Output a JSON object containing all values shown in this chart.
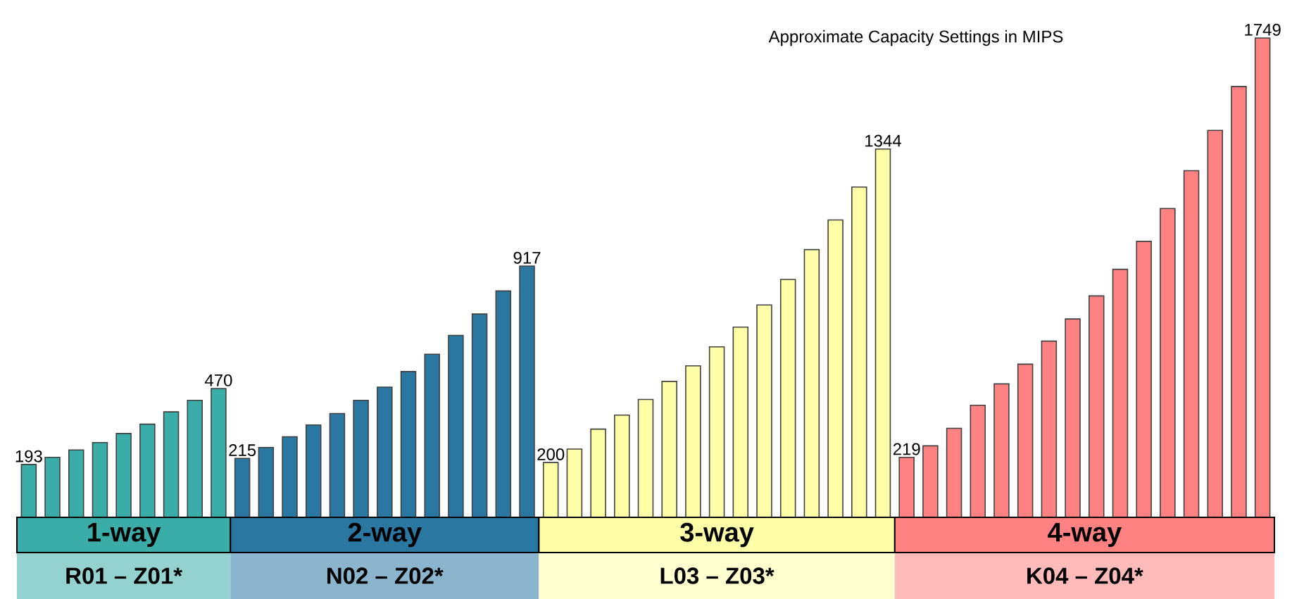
{
  "chart_data": {
    "type": "bar",
    "title": "Approximate Capacity Settings in MIPS",
    "categories": [
      null,
      null,
      null,
      null,
      null,
      null,
      null,
      null,
      null,
      null,
      null,
      null,
      null,
      null,
      null,
      null,
      null,
      null,
      null,
      null,
      null,
      null,
      null,
      null,
      null,
      null,
      null,
      null,
      null,
      null,
      null,
      null,
      null,
      null,
      null,
      null,
      null,
      null,
      null,
      null,
      null,
      null,
      null,
      null,
      null,
      null,
      null,
      null,
      null,
      null,
      null,
      null,
      null
    ],
    "values": [
      193,
      219,
      246,
      273,
      306,
      340,
      385,
      427,
      470,
      215,
      255,
      294,
      337,
      379,
      427,
      475,
      532,
      595,
      664,
      742,
      826,
      917,
      200,
      249,
      322,
      373,
      430,
      496,
      553,
      622,
      694,
      775,
      868,
      977,
      1085,
      1205,
      1344,
      219,
      261,
      325,
      409,
      487,
      559,
      643,
      724,
      808,
      905,
      1007,
      1127,
      1265,
      1412,
      1572,
      1749
    ],
    "value_labels": [
      "193",
      null,
      null,
      null,
      null,
      null,
      null,
      null,
      "470",
      "215",
      null,
      null,
      null,
      null,
      null,
      null,
      null,
      null,
      null,
      null,
      null,
      "917",
      "200",
      null,
      null,
      null,
      null,
      null,
      null,
      null,
      null,
      null,
      null,
      null,
      null,
      null,
      "1344",
      "219",
      null,
      null,
      null,
      null,
      null,
      null,
      null,
      null,
      null,
      null,
      null,
      null,
      null,
      null,
      "1749"
    ],
    "colors": [
      "#3aada8",
      "#3aada8",
      "#3aada8",
      "#3aada8",
      "#3aada8",
      "#3aada8",
      "#3aada8",
      "#3aada8",
      "#3aada8",
      "#2a78a2",
      "#2a78a2",
      "#2a78a2",
      "#2a78a2",
      "#2a78a2",
      "#2a78a2",
      "#2a78a2",
      "#2a78a2",
      "#2a78a2",
      "#2a78a2",
      "#2a78a2",
      "#2a78a2",
      "#2a78a2",
      "#ffffa8",
      "#ffffa8",
      "#ffffa8",
      "#ffffa8",
      "#ffffa8",
      "#ffffa8",
      "#ffffa8",
      "#ffffa8",
      "#ffffa8",
      "#ffffa8",
      "#ffffa8",
      "#ffffa8",
      "#ffffa8",
      "#ffffa8",
      "#ffffa8",
      "#ff8282",
      "#ff8282",
      "#ff8282",
      "#ff8282",
      "#ff8282",
      "#ff8282",
      "#ff8282",
      "#ff8282",
      "#ff8282",
      "#ff8282",
      "#ff8282",
      "#ff8282",
      "#ff8282",
      "#ff8282",
      "#ff8282",
      "#ff8282"
    ],
    "annotations": [
      "1-way",
      "2-way",
      "3-way",
      "4-way",
      "R01 – Z01*",
      "N02 – Z02*",
      "L03 – Z03*",
      "K04 – Z04*"
    ]
  }
}
